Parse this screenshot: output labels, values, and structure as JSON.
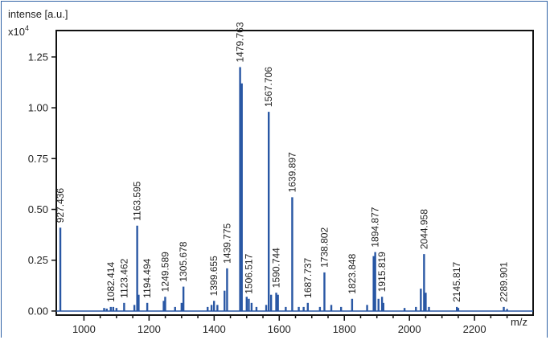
{
  "chart_data": {
    "type": "line",
    "ylabel": "intense [a.u.]",
    "y_multiplier": "x10",
    "y_multiplier_exp": "4",
    "xlabel": "m/z",
    "xlim": [
      915,
      2380
    ],
    "ylim": [
      -0.02,
      1.38
    ],
    "x_ticks": [
      1000,
      1200,
      1400,
      1600,
      1800,
      2000,
      2200
    ],
    "x_tick_labels": [
      "1000",
      "1200",
      "1400",
      "1600",
      "1800",
      "2000",
      "2200"
    ],
    "y_ticks": [
      0,
      0.25,
      0.5,
      0.75,
      1.0,
      1.25
    ],
    "y_tick_labels": [
      "0.00",
      "0.25",
      "0.50",
      "0.75",
      "1.00",
      "1.25"
    ],
    "grid": false,
    "line_color": "#2957a4",
    "labeled_peaks": [
      {
        "mz": 927.436,
        "label": "927.436",
        "intensity": 0.41
      },
      {
        "mz": 1082.414,
        "label": "1082.414",
        "intensity": 0.02
      },
      {
        "mz": 1123.462,
        "label": "1123.462",
        "intensity": 0.04
      },
      {
        "mz": 1163.595,
        "label": "1163.595",
        "intensity": 0.42
      },
      {
        "mz": 1194.494,
        "label": "1194.494",
        "intensity": 0.04
      },
      {
        "mz": 1249.589,
        "label": "1249.589",
        "intensity": 0.07
      },
      {
        "mz": 1305.678,
        "label": "1305.678",
        "intensity": 0.12
      },
      {
        "mz": 1399.655,
        "label": "1399.655",
        "intensity": 0.05
      },
      {
        "mz": 1439.775,
        "label": "1439.775",
        "intensity": 0.21
      },
      {
        "mz": 1479.763,
        "label": "1479.763",
        "intensity": 1.2
      },
      {
        "mz": 1506.517,
        "label": "1506.517",
        "intensity": 0.06
      },
      {
        "mz": 1567.706,
        "label": "1567.706",
        "intensity": 0.98
      },
      {
        "mz": 1590.744,
        "label": "1590.744",
        "intensity": 0.09
      },
      {
        "mz": 1639.897,
        "label": "1639.897",
        "intensity": 0.56
      },
      {
        "mz": 1687.737,
        "label": "1687.737",
        "intensity": 0.04
      },
      {
        "mz": 1738.802,
        "label": "1738.802",
        "intensity": 0.19
      },
      {
        "mz": 1823.848,
        "label": "1823.848",
        "intensity": 0.06
      },
      {
        "mz": 1894.877,
        "label": "1894.877",
        "intensity": 0.29
      },
      {
        "mz": 1915.819,
        "label": "1915.819",
        "intensity": 0.07
      },
      {
        "mz": 2044.958,
        "label": "2044.958",
        "intensity": 0.28
      },
      {
        "mz": 2145.817,
        "label": "2145.817",
        "intensity": 0.02
      },
      {
        "mz": 2289.901,
        "label": "2289.901",
        "intensity": 0.02
      }
    ],
    "minor_peaks": [
      {
        "mz": 1062,
        "intensity": 0.015
      },
      {
        "mz": 1070,
        "intensity": 0.012
      },
      {
        "mz": 1090,
        "intensity": 0.02
      },
      {
        "mz": 1100,
        "intensity": 0.015
      },
      {
        "mz": 1155,
        "intensity": 0.03
      },
      {
        "mz": 1168,
        "intensity": 0.08
      },
      {
        "mz": 1245,
        "intensity": 0.05
      },
      {
        "mz": 1280,
        "intensity": 0.02
      },
      {
        "mz": 1300,
        "intensity": 0.04
      },
      {
        "mz": 1380,
        "intensity": 0.02
      },
      {
        "mz": 1392,
        "intensity": 0.03
      },
      {
        "mz": 1410,
        "intensity": 0.03
      },
      {
        "mz": 1432,
        "intensity": 0.1
      },
      {
        "mz": 1485,
        "intensity": 1.12
      },
      {
        "mz": 1500,
        "intensity": 0.07
      },
      {
        "mz": 1515,
        "intensity": 0.04
      },
      {
        "mz": 1530,
        "intensity": 0.02
      },
      {
        "mz": 1560,
        "intensity": 0.03
      },
      {
        "mz": 1575,
        "intensity": 0.08
      },
      {
        "mz": 1596,
        "intensity": 0.08
      },
      {
        "mz": 1620,
        "intensity": 0.02
      },
      {
        "mz": 1660,
        "intensity": 0.02
      },
      {
        "mz": 1675,
        "intensity": 0.02
      },
      {
        "mz": 1725,
        "intensity": 0.02
      },
      {
        "mz": 1760,
        "intensity": 0.03
      },
      {
        "mz": 1790,
        "intensity": 0.02
      },
      {
        "mz": 1870,
        "intensity": 0.03
      },
      {
        "mz": 1890,
        "intensity": 0.27
      },
      {
        "mz": 1905,
        "intensity": 0.06
      },
      {
        "mz": 1920,
        "intensity": 0.04
      },
      {
        "mz": 1985,
        "intensity": 0.015
      },
      {
        "mz": 2020,
        "intensity": 0.02
      },
      {
        "mz": 2035,
        "intensity": 0.11
      },
      {
        "mz": 2050,
        "intensity": 0.09
      },
      {
        "mz": 2060,
        "intensity": 0.02
      },
      {
        "mz": 2150,
        "intensity": 0.015
      },
      {
        "mz": 2300,
        "intensity": 0.01
      }
    ]
  }
}
